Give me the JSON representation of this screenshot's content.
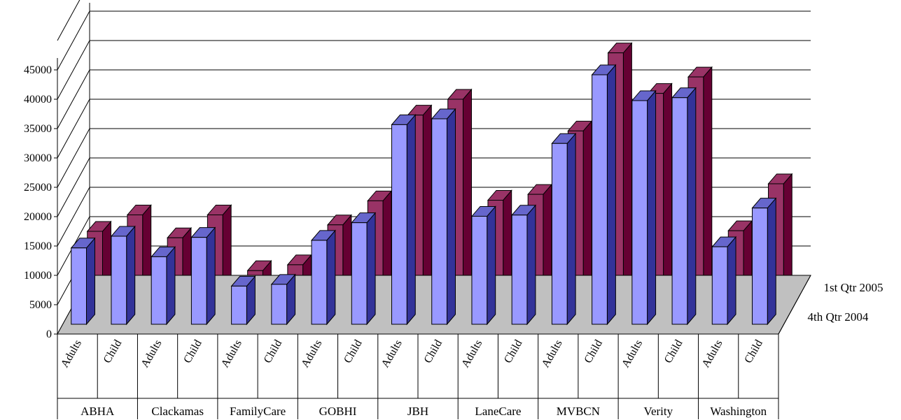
{
  "chart_data": {
    "type": "bar",
    "style": "3d-clustered-column",
    "y_ticks": [
      "0",
      "5000",
      "10000",
      "15000",
      "20000",
      "25000",
      "30000",
      "35000",
      "40000",
      "45000"
    ],
    "ylim": [
      0,
      45000
    ],
    "grid": true,
    "groups": [
      "ABHA",
      "Clackamas",
      "FamilyCare",
      "GOBHI",
      "JBH",
      "LaneCare",
      "MVBCN",
      "Verity",
      "Washington"
    ],
    "subcategories": [
      "Adults",
      "Child"
    ],
    "categories": [
      "ABHA Adults",
      "ABHA Child",
      "Clackamas Adults",
      "Clackamas Child",
      "FamilyCare Adults",
      "FamilyCare Child",
      "GOBHI Adults",
      "GOBHI Child",
      "JBH Adults",
      "JBH Child",
      "LaneCare Adults",
      "LaneCare Child",
      "MVBCN Adults",
      "MVBCN Child",
      "Verity Adults",
      "Verity Child",
      "Washington Adults",
      "Washington Child"
    ],
    "series": [
      {
        "name": "4th Qtr 2004",
        "color": "#9999ff",
        "values": [
          13000,
          15000,
          11500,
          14800,
          6500,
          6800,
          14300,
          17300,
          34000,
          35000,
          18400,
          18600,
          30800,
          42500,
          38100,
          38600,
          13200,
          19800
        ]
      },
      {
        "name": "1st Qtr 2005",
        "color": "#993366",
        "values": [
          12500,
          15300,
          11400,
          15300,
          5800,
          6800,
          13600,
          17700,
          32300,
          35000,
          17800,
          18800,
          29600,
          42900,
          36000,
          38800,
          12600,
          20600
        ]
      }
    ]
  }
}
